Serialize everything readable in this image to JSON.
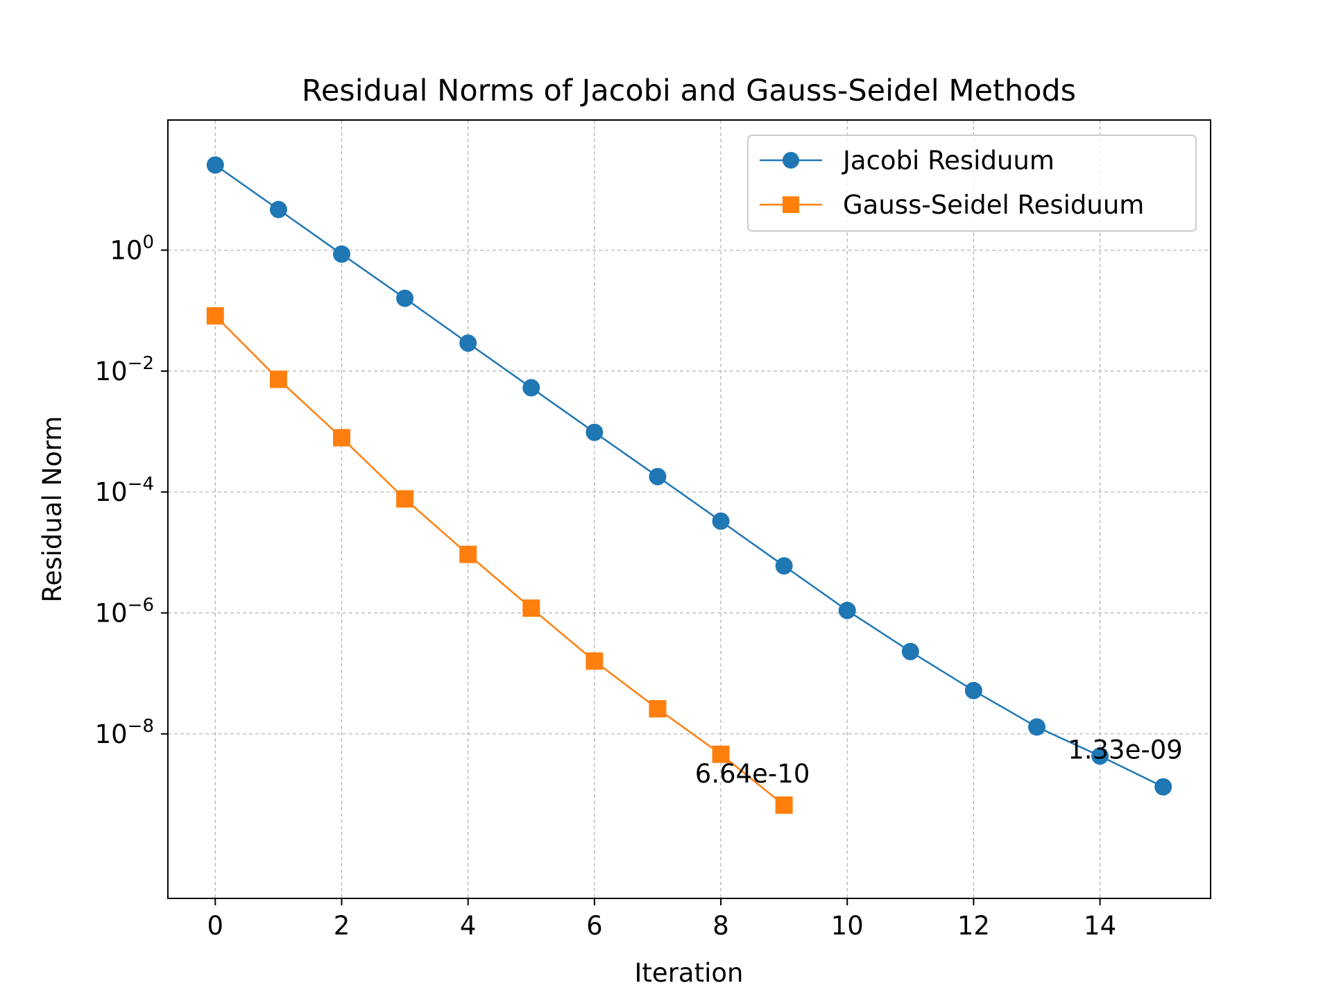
{
  "chart_data": {
    "type": "line",
    "title": "Residual Norms of Jacobi and Gauss-Seidel Methods",
    "xlabel": "Iteration",
    "ylabel": "Residual Norm",
    "xlim": [
      -0.75,
      15.75
    ],
    "ylim": [
      1.9e-11,
      142
    ],
    "yscale": "log",
    "grid": true,
    "legend_position": "top-right",
    "x_ticks": [
      0,
      2,
      4,
      6,
      8,
      10,
      12,
      14
    ],
    "y_ticks": [
      {
        "base": "10",
        "exp": "0",
        "value": 1
      },
      {
        "base": "10",
        "exp": "−2",
        "value": 0.01
      },
      {
        "base": "10",
        "exp": "−4",
        "value": 0.0001
      },
      {
        "base": "10",
        "exp": "−6",
        "value": 1e-06
      },
      {
        "base": "10",
        "exp": "−8",
        "value": 1e-08
      }
    ],
    "series": [
      {
        "name": "Jacobi Residuum",
        "color": "#1f77b4",
        "marker": "circle",
        "x": [
          0,
          1,
          2,
          3,
          4,
          5,
          6,
          7,
          8,
          9,
          10,
          11,
          12,
          13,
          14,
          15
        ],
        "y": [
          25.6,
          4.7,
          0.86,
          0.16,
          0.029,
          0.0053,
          0.00097,
          0.00018,
          3.3e-05,
          6e-06,
          1.1e-06,
          2.3e-07,
          5.2e-08,
          1.3e-08,
          4.3e-09,
          1.33e-09
        ]
      },
      {
        "name": "Gauss-Seidel Residuum",
        "color": "#ff7f0e",
        "marker": "square",
        "x": [
          0,
          1,
          2,
          3,
          4,
          5,
          6,
          7,
          8,
          9
        ],
        "y": [
          0.082,
          0.0073,
          0.00079,
          7.7e-05,
          9.3e-06,
          1.2e-06,
          1.6e-07,
          2.6e-08,
          4.6e-09,
          6.64e-10
        ]
      }
    ],
    "annotations": [
      {
        "text": "6.64e-10",
        "x": 8.5,
        "y": 2.2e-09
      },
      {
        "text": "1.33e-09",
        "x": 14.4,
        "y": 5.5e-09
      }
    ]
  }
}
